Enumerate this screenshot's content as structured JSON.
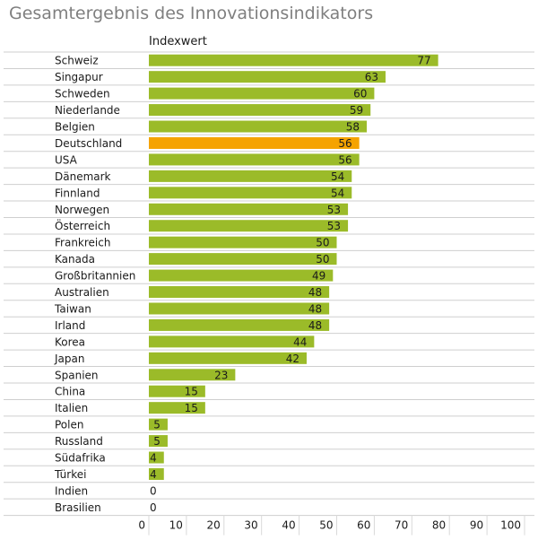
{
  "chart_data": {
    "type": "bar",
    "orientation": "horizontal",
    "title": "Gesamtergebnis des Innovationsindikators",
    "subtitle": "Indexwert",
    "categories": [
      "Schweiz",
      "Singapur",
      "Schweden",
      "Niederlande",
      "Belgien",
      "Deutschland",
      "USA",
      "Dänemark",
      "Finnland",
      "Norwegen",
      "Österreich",
      "Frankreich",
      "Kanada",
      "Großbritannien",
      "Australien",
      "Taiwan",
      "Irland",
      "Korea",
      "Japan",
      "Spanien",
      "China",
      "Italien",
      "Polen",
      "Russland",
      "Südafrika",
      "Türkei",
      "Indien",
      "Brasilien"
    ],
    "values": [
      77,
      63,
      60,
      59,
      58,
      56,
      56,
      54,
      54,
      53,
      53,
      50,
      50,
      49,
      48,
      48,
      48,
      44,
      42,
      23,
      15,
      15,
      5,
      5,
      4,
      4,
      0,
      0
    ],
    "xlim": [
      0,
      100
    ],
    "xticks": [
      0,
      10,
      20,
      30,
      40,
      50,
      60,
      70,
      80,
      90,
      100
    ],
    "bar_color": "#9bbb29",
    "highlight_category": "Deutschland",
    "highlight_color": "#f5a300",
    "grid": "horizontal row separators"
  }
}
